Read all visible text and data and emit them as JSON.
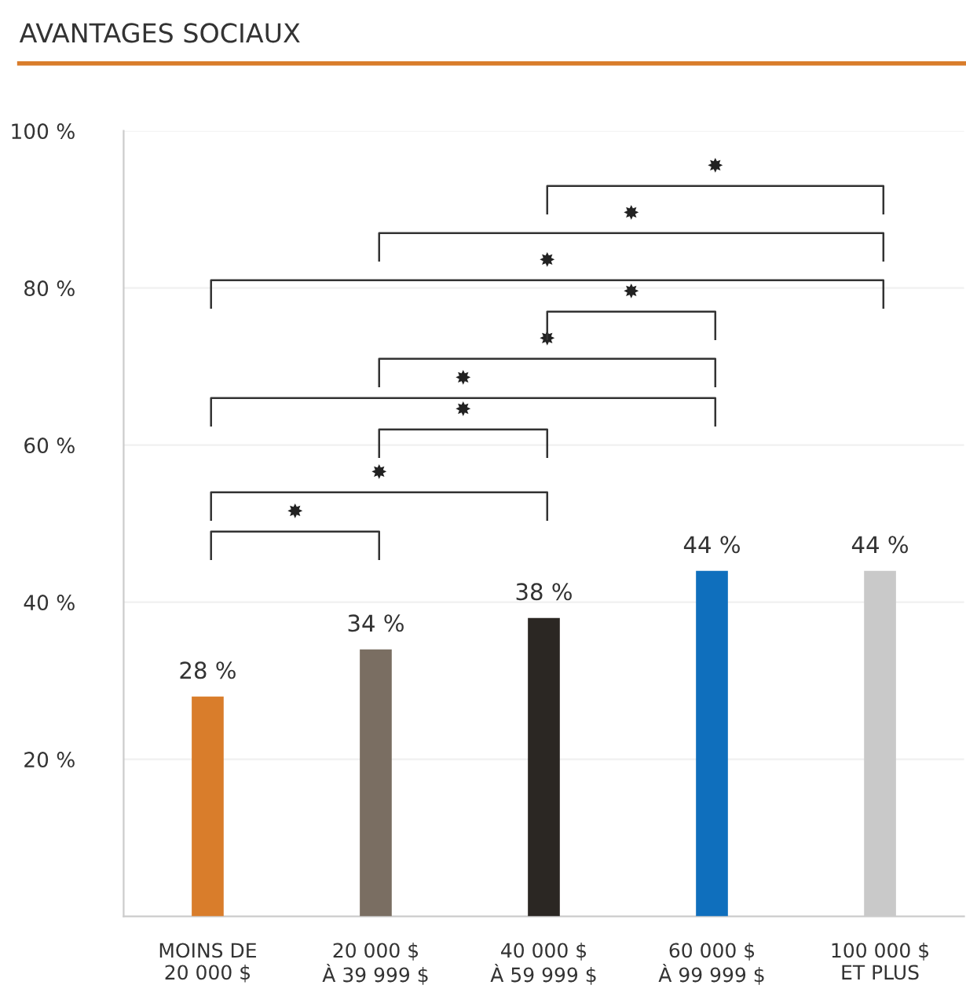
{
  "chart_data": {
    "type": "bar",
    "title": "AVANTAGES SOCIAUX",
    "categories": [
      "MOINS DE\n20 000 $",
      "20 000 $\nÀ 39 999 $",
      "40 000 $\nÀ 59 999 $",
      "60 000 $\nÀ 99 999 $",
      "100 000 $\nET PLUS"
    ],
    "values": [
      28,
      34,
      38,
      44,
      44
    ],
    "colors": [
      "#d97d2b",
      "#7a6e62",
      "#2b2723",
      "#0f6fbd",
      "#c9c9c9"
    ],
    "value_labels": [
      "28 %",
      "34 %",
      "38 %",
      "44 %",
      "44 %"
    ],
    "ylim": [
      0,
      100
    ],
    "yticks": [
      {
        "value": 20,
        "label": "20 %"
      },
      {
        "value": 40,
        "label": "40 %"
      },
      {
        "value": 60,
        "label": "60 %"
      },
      {
        "value": 80,
        "label": "80 %"
      },
      {
        "value": 100,
        "label": "100 %"
      }
    ],
    "grid": "y",
    "annotations": [
      "✸",
      "✸",
      "✸",
      "✸",
      "✸",
      "✸",
      "✸",
      "✸",
      "✸"
    ]
  }
}
